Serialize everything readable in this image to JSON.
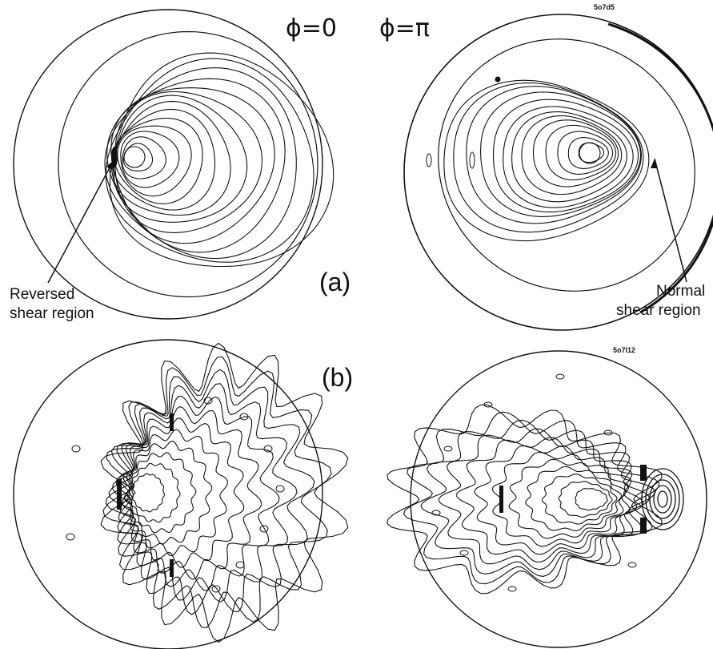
{
  "header": {
    "phi_left": "ϕ=0",
    "phi_right": "ϕ=π"
  },
  "panels": {
    "a": {
      "label": "(a)",
      "code": "5o7d5"
    },
    "b": {
      "label": "(b)",
      "code": "5o7l12"
    }
  },
  "annotations": {
    "reversed_line1": "Reversed",
    "reversed_line2": "shear region",
    "normal_line1": "Normal",
    "normal_line2": "shear region"
  },
  "colors": {
    "line": "#111111",
    "background": "#ffffff"
  }
}
